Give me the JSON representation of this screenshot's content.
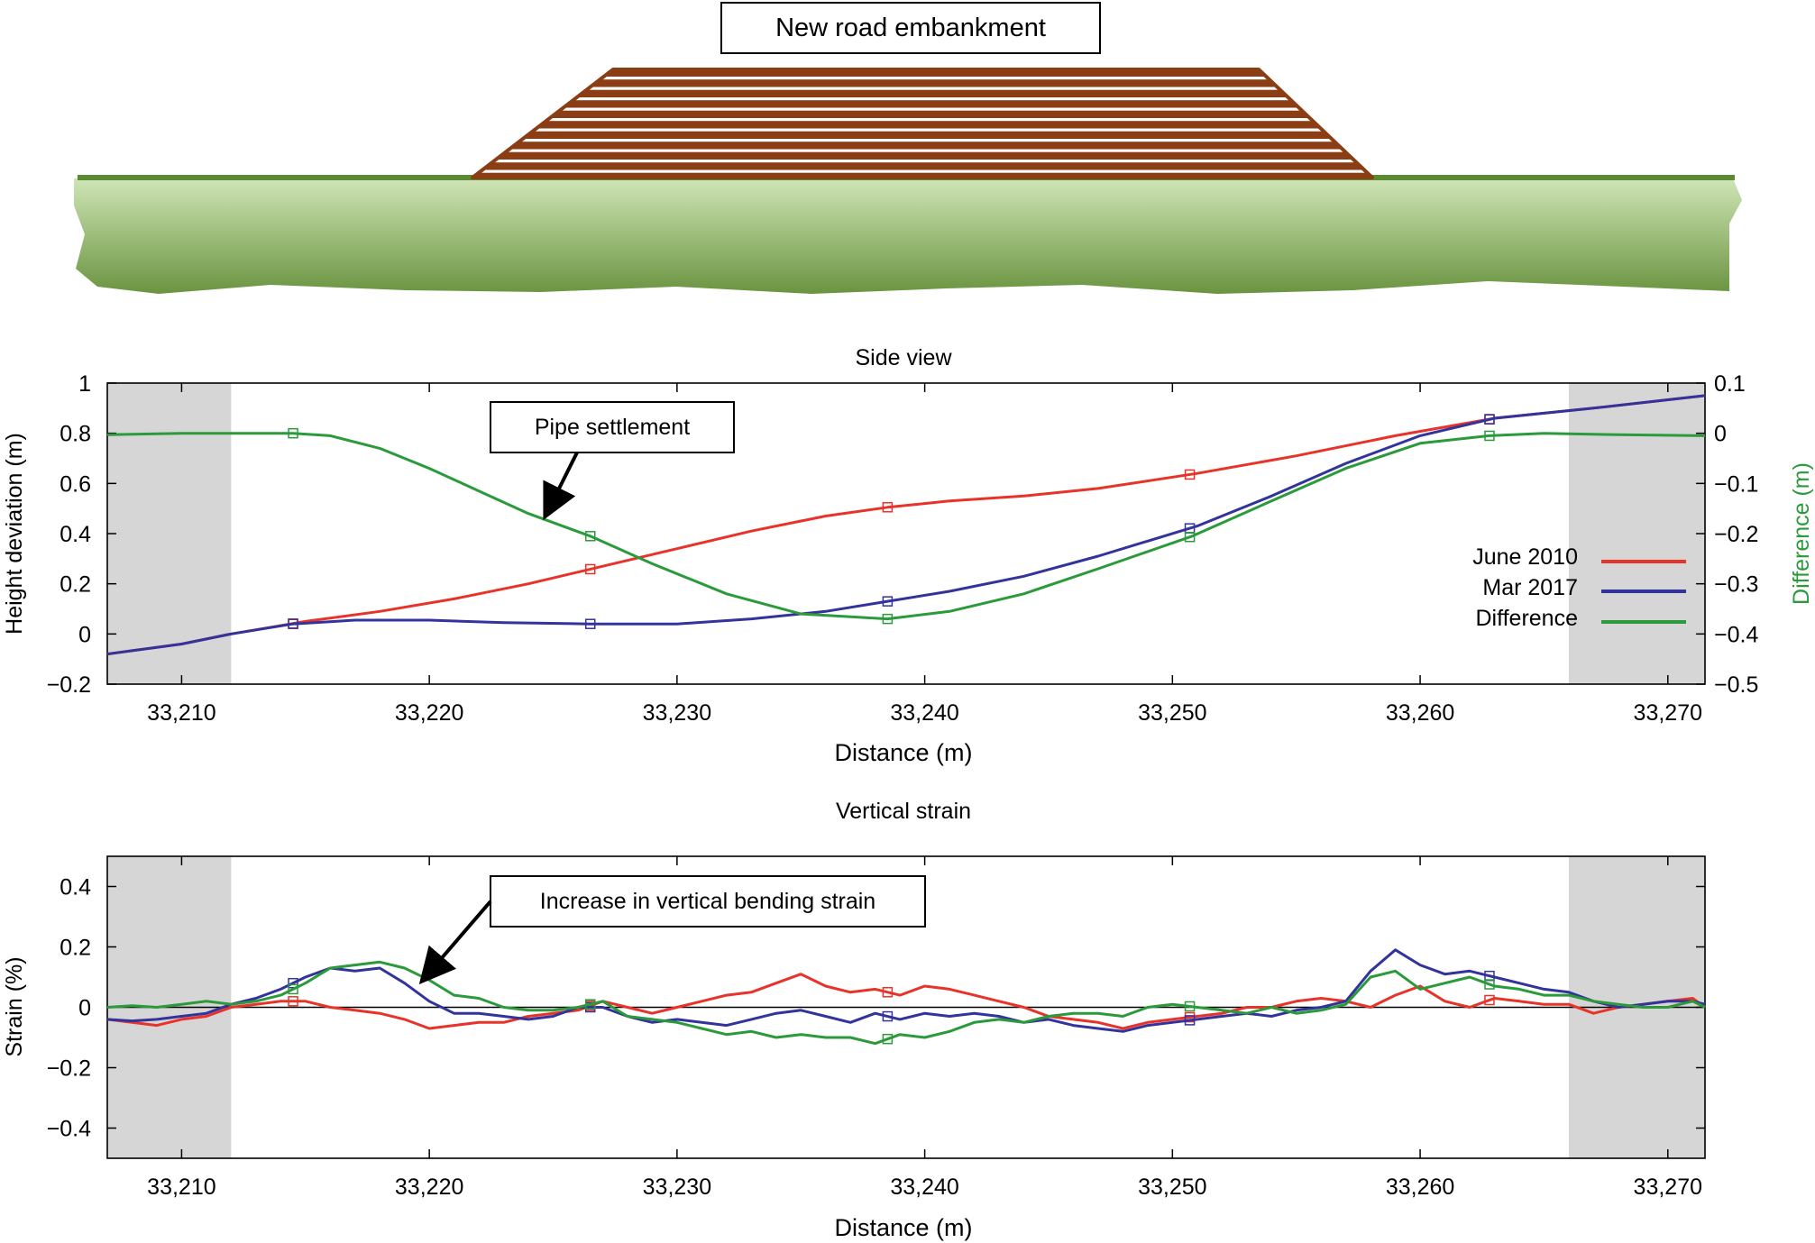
{
  "embankment": {
    "label": "New road embankment",
    "colors": {
      "embankment": "#8b3d14",
      "stripe": "#ffffff",
      "ground_top": "#cfe5b6",
      "ground_bottom": "#6a9440",
      "ground_line": "#5b8a34"
    }
  },
  "colors": {
    "june_2010": "#e8332a",
    "mar_2017": "#33339c",
    "difference": "#2a9a3a",
    "mask": "#d6d6d6",
    "difference_axis_label": "#2a9a3a"
  },
  "chart_data": [
    {
      "type": "line",
      "title": "Side view",
      "xlabel": "Distance (m)",
      "ylabel": "Height deviation (m)",
      "y2label": "Difference (m)",
      "xlim": [
        33207,
        33271.5
      ],
      "ylim": [
        -0.2,
        1.0
      ],
      "y2lim": [
        -0.5,
        0.1
      ],
      "xticks": [
        33210,
        33220,
        33230,
        33240,
        33250,
        33260,
        33270
      ],
      "xtick_labels": [
        "33,210",
        "33,220",
        "33,230",
        "33,240",
        "33,250",
        "33,260",
        "33,270"
      ],
      "yticks": [
        -0.2,
        0,
        0.2,
        0.4,
        0.6,
        0.8,
        1
      ],
      "ytick_labels": [
        "−0.2",
        "0",
        "0.2",
        "0.4",
        "0.6",
        "0.8",
        "1"
      ],
      "y2ticks": [
        -0.5,
        -0.4,
        -0.3,
        -0.2,
        -0.1,
        0,
        0.1
      ],
      "y2tick_labels": [
        "−0.5",
        "−0.4",
        "−0.3",
        "−0.2",
        "−0.1",
        "0",
        "0.1"
      ],
      "grid": false,
      "masked_ranges": [
        [
          33207,
          33212
        ],
        [
          33266,
          33271.5
        ]
      ],
      "legend_position": "right",
      "annotation": {
        "text": "Pipe settlement",
        "points_to": [
          33224.5,
          0.4
        ]
      },
      "series": [
        {
          "name": "June 2010",
          "axis": "left",
          "x": [
            33207,
            33210,
            33212,
            33215,
            33218,
            33221,
            33224,
            33227,
            33230,
            33233,
            33236,
            33238.5,
            33241,
            33244,
            33247,
            33251,
            33255,
            33259,
            33263,
            33267,
            33271.5
          ],
          "y": [
            -0.08,
            -0.04,
            0.0,
            0.05,
            0.09,
            0.14,
            0.2,
            0.27,
            0.34,
            0.41,
            0.47,
            0.505,
            0.53,
            0.55,
            0.58,
            0.64,
            0.71,
            0.79,
            0.86,
            0.9,
            0.95
          ]
        },
        {
          "name": "Mar 2017",
          "axis": "left",
          "x": [
            33207,
            33210,
            33212,
            33214.5,
            33217,
            33220,
            33223,
            33226.5,
            33230,
            33233,
            33236,
            33238.5,
            33241,
            33244,
            33247,
            33251,
            33254,
            33257,
            33260,
            33263,
            33267,
            33271.5
          ],
          "y": [
            -0.08,
            -0.04,
            0.0,
            0.04,
            0.055,
            0.055,
            0.045,
            0.04,
            0.04,
            0.06,
            0.09,
            0.13,
            0.17,
            0.23,
            0.31,
            0.43,
            0.55,
            0.68,
            0.79,
            0.86,
            0.9,
            0.95
          ]
        },
        {
          "name": "Difference",
          "axis": "right",
          "x": [
            33207,
            33210,
            33214.5,
            33216,
            33218,
            33220,
            33222,
            33224,
            33226.5,
            33229,
            33232,
            33235,
            33238.5,
            33241,
            33244,
            33247,
            33250.8,
            33254,
            33257,
            33260,
            33262.8,
            33265,
            33268,
            33271.5
          ],
          "y": [
            -0.003,
            0.0,
            0.0,
            -0.005,
            -0.03,
            -0.07,
            -0.115,
            -0.16,
            -0.205,
            -0.26,
            -0.32,
            -0.36,
            -0.37,
            -0.355,
            -0.32,
            -0.27,
            -0.205,
            -0.135,
            -0.07,
            -0.02,
            -0.005,
            0.0,
            -0.003,
            -0.005
          ]
        }
      ]
    },
    {
      "type": "line",
      "title": "Vertical strain",
      "xlabel": "Distance (m)",
      "ylabel": "Strain (%)",
      "xlim": [
        33207,
        33271.5
      ],
      "ylim": [
        -0.5,
        0.5
      ],
      "xticks": [
        33210,
        33220,
        33230,
        33240,
        33250,
        33260,
        33270
      ],
      "xtick_labels": [
        "33,210",
        "33,220",
        "33,230",
        "33,240",
        "33,250",
        "33,260",
        "33,270"
      ],
      "yticks": [
        -0.4,
        -0.2,
        0,
        0.2,
        0.4
      ],
      "ytick_labels": [
        "−0.4",
        "−0.2",
        "0",
        "0.2",
        "0.4"
      ],
      "grid": false,
      "zero_line": true,
      "masked_ranges": [
        [
          33207,
          33212
        ],
        [
          33266,
          33271.5
        ]
      ],
      "annotation": {
        "text": "Increase in vertical bending strain",
        "points_to": [
          33219.5,
          0.09
        ]
      },
      "series": [
        {
          "name": "June 2010",
          "x": [
            33207,
            33208,
            33209,
            33210,
            33211,
            33212,
            33213,
            33214,
            33215,
            33216,
            33217,
            33218,
            33219,
            33220,
            33221,
            33222,
            33223,
            33224,
            33225,
            33226,
            33227,
            33228,
            33229,
            33230,
            33231,
            33232,
            33233,
            33234,
            33235,
            33236,
            33237,
            33238,
            33239,
            33240,
            33241,
            33242,
            33243,
            33244,
            33245,
            33246,
            33247,
            33248,
            33249,
            33250,
            33251,
            33252,
            33253,
            33254,
            33255,
            33256,
            33257,
            33258,
            33259,
            33260,
            33261,
            33262,
            33263,
            33264,
            33265,
            33266,
            33267,
            33268,
            33269,
            33270,
            33271,
            33271.5
          ],
          "y": [
            -0.04,
            -0.05,
            -0.06,
            -0.04,
            -0.03,
            0.0,
            0.01,
            0.02,
            0.02,
            0.0,
            -0.01,
            -0.02,
            -0.04,
            -0.07,
            -0.06,
            -0.05,
            -0.05,
            -0.03,
            -0.02,
            -0.01,
            0.02,
            0.0,
            -0.02,
            0.0,
            0.02,
            0.04,
            0.05,
            0.08,
            0.11,
            0.07,
            0.05,
            0.06,
            0.04,
            0.07,
            0.06,
            0.04,
            0.02,
            0.0,
            -0.03,
            -0.04,
            -0.05,
            -0.07,
            -0.05,
            -0.04,
            -0.03,
            -0.02,
            0.0,
            0.0,
            0.02,
            0.03,
            0.02,
            0.0,
            0.04,
            0.07,
            0.02,
            0.0,
            0.03,
            0.02,
            0.01,
            0.01,
            -0.02,
            0.0,
            0.01,
            0.02,
            0.03,
            0.0
          ]
        },
        {
          "name": "Mar 2017",
          "x": [
            33207,
            33208,
            33209,
            33210,
            33211,
            33212,
            33213,
            33214,
            33215,
            33216,
            33217,
            33218,
            33219,
            33220,
            33221,
            33222,
            33223,
            33224,
            33225,
            33226,
            33227,
            33228,
            33229,
            33230,
            33231,
            33232,
            33233,
            33234,
            33235,
            33236,
            33237,
            33238,
            33239,
            33240,
            33241,
            33242,
            33243,
            33244,
            33245,
            33246,
            33247,
            33248,
            33249,
            33250,
            33251,
            33252,
            33253,
            33254,
            33255,
            33256,
            33257,
            33258,
            33259,
            33260,
            33261,
            33262,
            33263,
            33264,
            33265,
            33266,
            33267,
            33268,
            33269,
            33270,
            33271,
            33271.5
          ],
          "y": [
            -0.04,
            -0.045,
            -0.04,
            -0.03,
            -0.02,
            0.01,
            0.03,
            0.06,
            0.1,
            0.13,
            0.12,
            0.13,
            0.08,
            0.02,
            -0.02,
            -0.02,
            -0.03,
            -0.04,
            -0.03,
            0.0,
            0.0,
            -0.03,
            -0.05,
            -0.04,
            -0.05,
            -0.06,
            -0.04,
            -0.02,
            -0.01,
            -0.03,
            -0.05,
            -0.02,
            -0.04,
            -0.02,
            -0.03,
            -0.02,
            -0.03,
            -0.05,
            -0.04,
            -0.06,
            -0.07,
            -0.08,
            -0.06,
            -0.05,
            -0.04,
            -0.03,
            -0.02,
            -0.03,
            -0.01,
            0.0,
            0.02,
            0.12,
            0.19,
            0.14,
            0.11,
            0.12,
            0.1,
            0.08,
            0.06,
            0.05,
            0.02,
            0.0,
            0.01,
            0.02,
            0.02,
            0.01
          ]
        },
        {
          "name": "Difference",
          "x": [
            33207,
            33208,
            33209,
            33210,
            33211,
            33212,
            33213,
            33214,
            33215,
            33216,
            33217,
            33218,
            33219,
            33220,
            33221,
            33222,
            33223,
            33224,
            33225,
            33226,
            33227,
            33228,
            33229,
            33230,
            33231,
            33232,
            33233,
            33234,
            33235,
            33236,
            33237,
            33238,
            33239,
            33240,
            33241,
            33242,
            33243,
            33244,
            33245,
            33246,
            33247,
            33248,
            33249,
            33250,
            33251,
            33252,
            33253,
            33254,
            33255,
            33256,
            33257,
            33258,
            33259,
            33260,
            33261,
            33262,
            33263,
            33264,
            33265,
            33266,
            33267,
            33268,
            33269,
            33270,
            33271,
            33271.5
          ],
          "y": [
            0.0,
            0.005,
            0.0,
            0.01,
            0.02,
            0.01,
            0.02,
            0.04,
            0.08,
            0.13,
            0.14,
            0.15,
            0.13,
            0.09,
            0.04,
            0.03,
            0.0,
            -0.01,
            -0.01,
            0.0,
            0.02,
            -0.03,
            -0.04,
            -0.05,
            -0.07,
            -0.09,
            -0.08,
            -0.1,
            -0.09,
            -0.1,
            -0.1,
            -0.12,
            -0.09,
            -0.1,
            -0.08,
            -0.05,
            -0.04,
            -0.05,
            -0.03,
            -0.02,
            -0.02,
            -0.03,
            0.0,
            0.01,
            0.0,
            -0.01,
            -0.02,
            0.0,
            -0.02,
            -0.01,
            0.01,
            0.1,
            0.12,
            0.06,
            0.08,
            0.1,
            0.07,
            0.06,
            0.04,
            0.04,
            0.02,
            0.01,
            0.0,
            0.0,
            0.02,
            0.0
          ]
        }
      ]
    }
  ]
}
